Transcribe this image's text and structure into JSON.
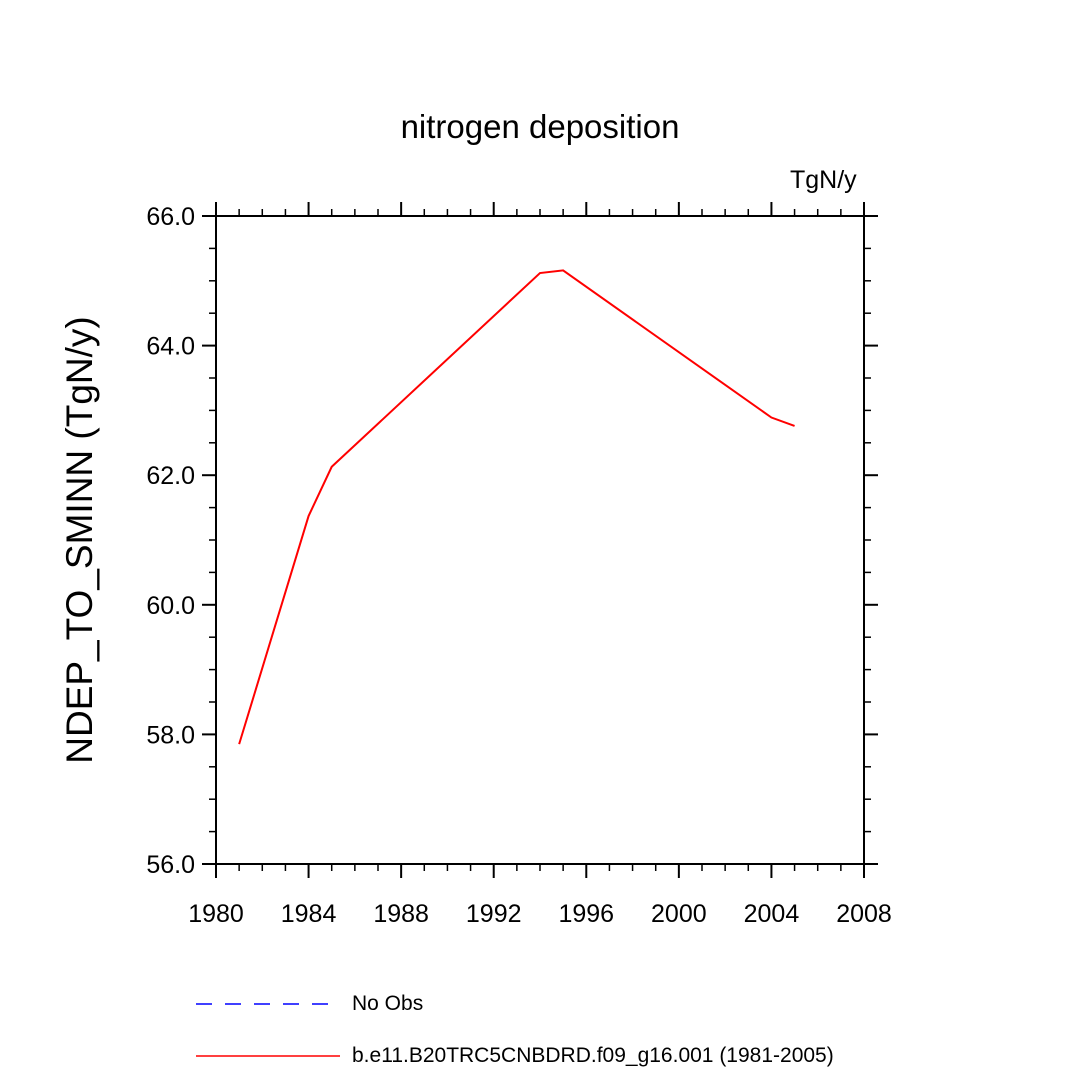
{
  "chart_data": {
    "type": "line",
    "title": "nitrogen deposition",
    "units": "TgN/y",
    "ylabel": "NDEP_TO_SMINN  (TgN/y)",
    "xlabel": "",
    "xlim": [
      1980,
      2008
    ],
    "ylim": [
      56.0,
      66.0
    ],
    "x_ticks": [
      1980,
      1984,
      1988,
      1992,
      1996,
      2000,
      2004,
      2008
    ],
    "y_ticks": [
      "56.0",
      "58.0",
      "60.0",
      "62.0",
      "64.0",
      "66.0"
    ],
    "grid": false,
    "legend_position": "bottom",
    "series": [
      {
        "name": "No Obs",
        "color": "#0000ff",
        "style": "dashed",
        "x": [],
        "y": []
      },
      {
        "name": "b.e11.B20TRC5CNBDRD.f09_g16.001 (1981-2005)",
        "color": "#ff0000",
        "style": "solid",
        "x": [
          1981,
          1984,
          1985,
          1994,
          1995,
          2004,
          2005
        ],
        "y": [
          57.85,
          61.37,
          62.13,
          65.12,
          65.16,
          62.89,
          62.76
        ]
      }
    ]
  }
}
